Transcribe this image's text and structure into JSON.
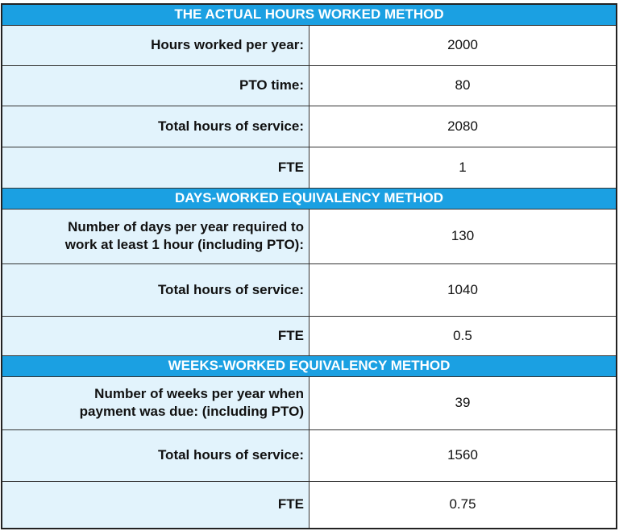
{
  "sections": [
    {
      "title": "THE ACTUAL HOURS WORKED METHOD",
      "rows": [
        [
          "Hours worked per year:",
          2000
        ],
        [
          "PTO time:",
          80
        ],
        [
          "Total hours of service:",
          2080
        ],
        [
          "FTE",
          1
        ]
      ]
    },
    {
      "title": "DAYS-WORKED EQUIVALENCY METHOD",
      "rows": [
        [
          "Number of days per year required to work at least 1 hour (including PTO):",
          130
        ],
        [
          "Total hours of service:",
          1040
        ],
        [
          "FTE",
          0.5
        ]
      ]
    },
    {
      "title": "WEEKS-WORKED EQUIVALENCY METHOD",
      "rows": [
        [
          "Number of weeks per year when payment was due: (including PTO)",
          39
        ],
        [
          "Total hours of service:",
          1560
        ],
        [
          "FTE",
          0.75
        ]
      ]
    }
  ]
}
